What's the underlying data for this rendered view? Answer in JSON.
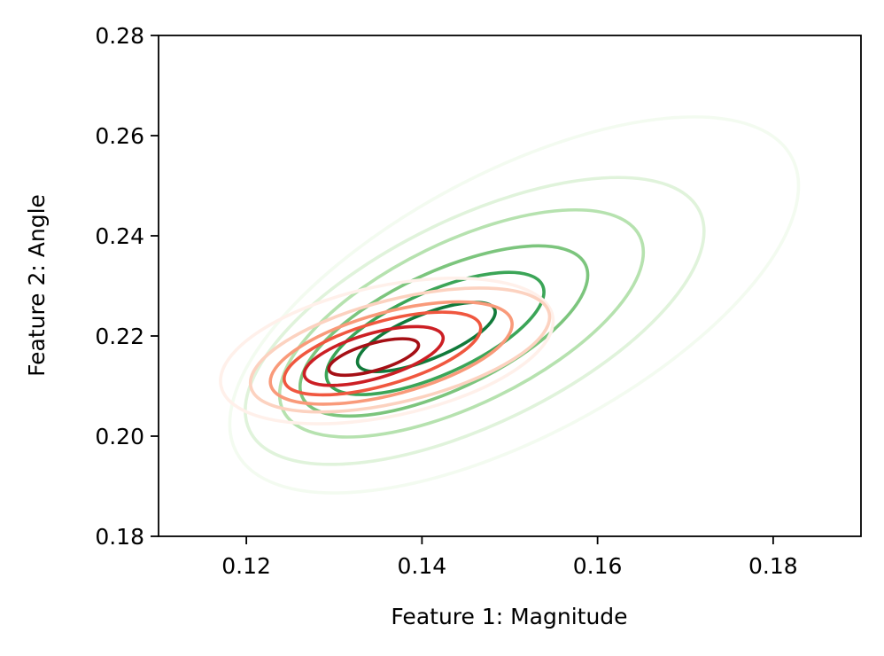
{
  "chart_data": {
    "type": "contour",
    "title": "",
    "xlabel": "Feature 1: Magnitude",
    "ylabel": "Feature 2: Angle",
    "xlim": [
      0.11,
      0.19
    ],
    "ylim": [
      0.18,
      0.28
    ],
    "xticks": [
      "0.12",
      "0.14",
      "0.16",
      "0.18"
    ],
    "yticks": [
      "0.18",
      "0.20",
      "0.22",
      "0.24",
      "0.26",
      "0.28"
    ],
    "grid": false,
    "legend": "none",
    "series": [
      {
        "colormap": "Greens",
        "levels": [
          {
            "cx": 0.1505,
            "cy": 0.2262,
            "rx": 0.0358,
            "ry": 0.0263,
            "angle_deg": -28,
            "color": "#f3fbf0"
          },
          {
            "cx": 0.146,
            "cy": 0.223,
            "rx": 0.0285,
            "ry": 0.0205,
            "angle_deg": -26,
            "color": "#e0f3db"
          },
          {
            "cx": 0.1445,
            "cy": 0.2225,
            "rx": 0.0226,
            "ry": 0.0162,
            "angle_deg": -26,
            "color": "#b6e2af"
          },
          {
            "cx": 0.1425,
            "cy": 0.221,
            "rx": 0.0178,
            "ry": 0.0118,
            "angle_deg": -25,
            "color": "#7cc57d"
          },
          {
            "cx": 0.1415,
            "cy": 0.2205,
            "rx": 0.0134,
            "ry": 0.0083,
            "angle_deg": -24,
            "color": "#3ba557"
          },
          {
            "cx": 0.1405,
            "cy": 0.2198,
            "rx": 0.0084,
            "ry": 0.0045,
            "angle_deg": -22,
            "color": "#117a3a"
          }
        ]
      },
      {
        "colormap": "Reds",
        "levels": [
          {
            "cx": 0.136,
            "cy": 0.217,
            "rx": 0.0193,
            "ry": 0.013,
            "angle_deg": -12,
            "color": "#fff0ea"
          },
          {
            "cx": 0.1375,
            "cy": 0.2172,
            "rx": 0.0175,
            "ry": 0.0102,
            "angle_deg": -14,
            "color": "#fcd2c0"
          },
          {
            "cx": 0.1365,
            "cy": 0.2166,
            "rx": 0.0142,
            "ry": 0.0082,
            "angle_deg": -15,
            "color": "#f99a7a"
          },
          {
            "cx": 0.1355,
            "cy": 0.2165,
            "rx": 0.0116,
            "ry": 0.0063,
            "angle_deg": -16,
            "color": "#f0573f"
          },
          {
            "cx": 0.1345,
            "cy": 0.216,
            "rx": 0.0082,
            "ry": 0.0045,
            "angle_deg": -16,
            "color": "#cc1f24"
          },
          {
            "cx": 0.1345,
            "cy": 0.2158,
            "rx": 0.0053,
            "ry": 0.0027,
            "angle_deg": -16,
            "color": "#a50f15"
          }
        ]
      }
    ]
  }
}
